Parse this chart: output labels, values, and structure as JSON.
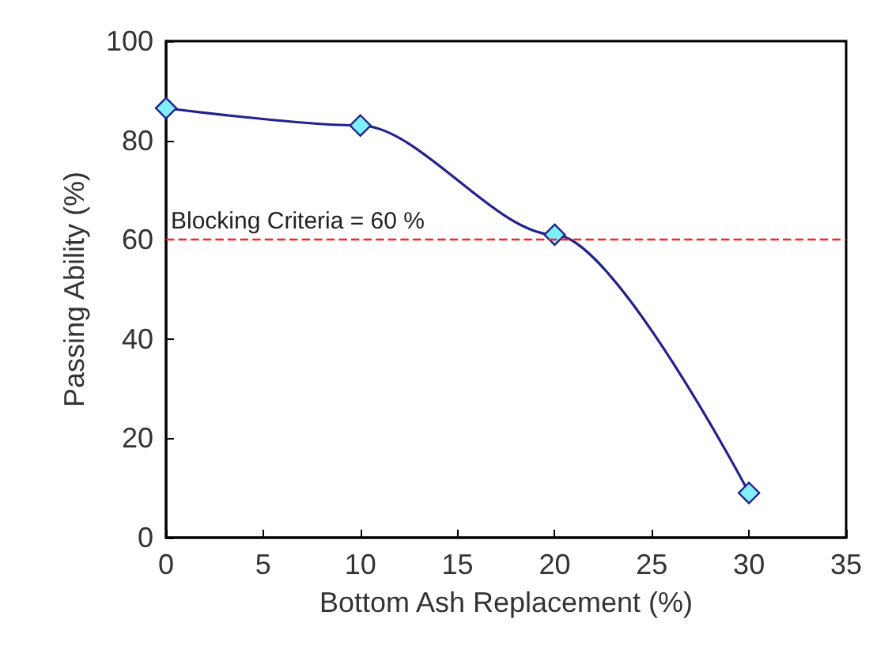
{
  "chart_data": {
    "type": "line",
    "xlabel": "Bottom Ash Replacement (%)",
    "ylabel": "Passing Ability (%)",
    "x": [
      0,
      10,
      20,
      30
    ],
    "series": [
      {
        "color": "#22228c",
        "values": [
          86.5,
          83,
          61,
          9
        ]
      }
    ],
    "xlim": [
      0,
      35
    ],
    "xticks": [
      0,
      5,
      10,
      15,
      20,
      25,
      30,
      35
    ],
    "ylim": [
      0,
      100
    ],
    "yticks": [
      0,
      20,
      40,
      60,
      80,
      100
    ],
    "ref_lines": [
      {
        "axis": "y",
        "value": 60,
        "label": "Blocking Criteria = 60 %",
        "color": "#ff2020",
        "line_style": "dashed"
      }
    ],
    "marker": "diamond",
    "line_style": "solid",
    "grid": false
  }
}
